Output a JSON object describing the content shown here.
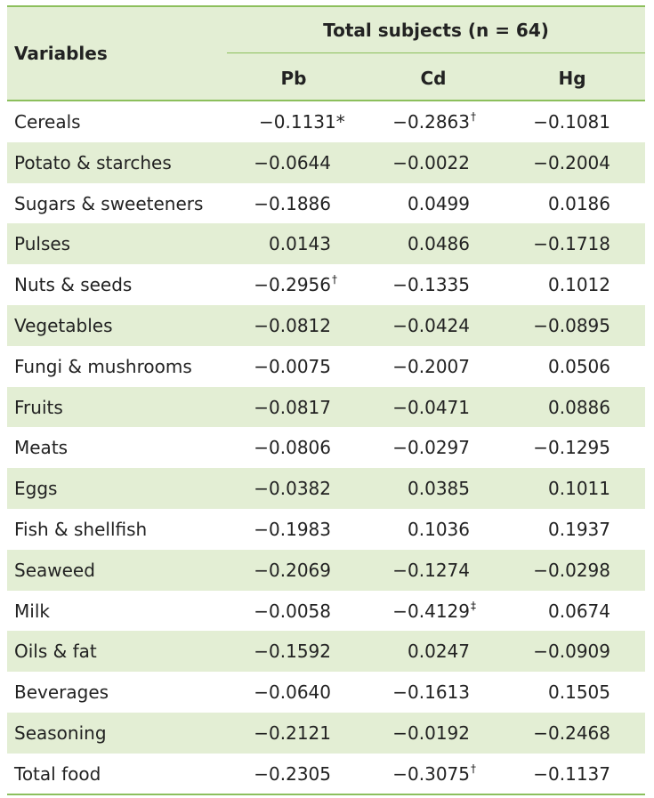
{
  "table": {
    "header": {
      "first": "Variables",
      "group": "Total subjects (n = 64)",
      "columns": [
        "Pb",
        "Cd",
        "Hg"
      ]
    },
    "rows": [
      {
        "label": "Cereals",
        "cells": [
          {
            "value": "−0.1131*"
          },
          {
            "value": "−0.2863",
            "sup": "†"
          },
          {
            "value": "−0.1081"
          }
        ]
      },
      {
        "label": "Potato & starches",
        "cells": [
          {
            "value": "−0.0644"
          },
          {
            "value": "−0.0022"
          },
          {
            "value": "−0.2004"
          }
        ]
      },
      {
        "label": "Sugars & sweeteners",
        "cells": [
          {
            "value": "−0.1886"
          },
          {
            "value": "0.0499"
          },
          {
            "value": "0.0186"
          }
        ]
      },
      {
        "label": "Pulses",
        "cells": [
          {
            "value": "0.0143"
          },
          {
            "value": "0.0486"
          },
          {
            "value": "−0.1718"
          }
        ]
      },
      {
        "label": "Nuts & seeds",
        "cells": [
          {
            "value": "−0.2956",
            "sup": "†"
          },
          {
            "value": "−0.1335"
          },
          {
            "value": "0.1012"
          }
        ]
      },
      {
        "label": "Vegetables",
        "cells": [
          {
            "value": "−0.0812"
          },
          {
            "value": "−0.0424"
          },
          {
            "value": "−0.0895"
          }
        ]
      },
      {
        "label": "Fungi & mushrooms",
        "cells": [
          {
            "value": "−0.0075"
          },
          {
            "value": "−0.2007"
          },
          {
            "value": "0.0506"
          }
        ]
      },
      {
        "label": "Fruits",
        "cells": [
          {
            "value": "−0.0817"
          },
          {
            "value": "−0.0471"
          },
          {
            "value": "0.0886"
          }
        ]
      },
      {
        "label": "Meats",
        "cells": [
          {
            "value": "−0.0806"
          },
          {
            "value": "−0.0297"
          },
          {
            "value": "−0.1295"
          }
        ]
      },
      {
        "label": "Eggs",
        "cells": [
          {
            "value": "−0.0382"
          },
          {
            "value": "0.0385"
          },
          {
            "value": "0.1011"
          }
        ]
      },
      {
        "label": "Fish & shellfish",
        "cells": [
          {
            "value": "−0.1983"
          },
          {
            "value": "0.1036"
          },
          {
            "value": "0.1937"
          }
        ]
      },
      {
        "label": "Seaweed",
        "cells": [
          {
            "value": "−0.2069"
          },
          {
            "value": "−0.1274"
          },
          {
            "value": "−0.0298"
          }
        ]
      },
      {
        "label": "Milk",
        "cells": [
          {
            "value": "−0.0058"
          },
          {
            "value": "−0.4129",
            "sup": "‡"
          },
          {
            "value": "0.0674"
          }
        ]
      },
      {
        "label": "Oils & fat",
        "cells": [
          {
            "value": "−0.1592"
          },
          {
            "value": "0.0247"
          },
          {
            "value": "−0.0909"
          }
        ]
      },
      {
        "label": "Beverages",
        "cells": [
          {
            "value": "−0.0640"
          },
          {
            "value": "−0.1613"
          },
          {
            "value": "0.1505"
          }
        ]
      },
      {
        "label": "Seasoning",
        "cells": [
          {
            "value": "−0.2121"
          },
          {
            "value": "−0.0192"
          },
          {
            "value": "−0.2468"
          }
        ]
      },
      {
        "label": "Total food",
        "cells": [
          {
            "value": "−0.2305"
          },
          {
            "value": "−0.3075",
            "sup": "†"
          },
          {
            "value": "−0.1137"
          }
        ]
      }
    ]
  }
}
